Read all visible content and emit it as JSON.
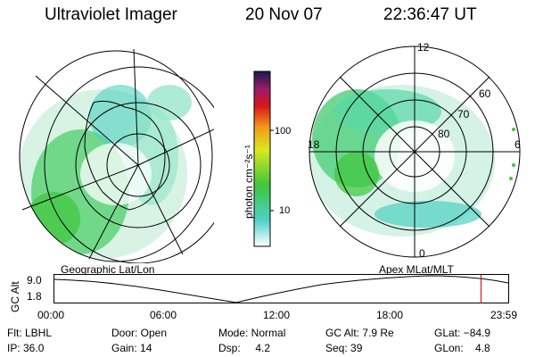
{
  "header": {
    "title": "Ultraviolet Imager",
    "date": "20 Nov 07",
    "time": "22:36:47 UT"
  },
  "colors": {
    "background": "#ffffff",
    "aurora_green": "#3fc63a",
    "aurora_cyan": "#39c9b8",
    "marker_red": "#cc0000"
  },
  "colorbar": {
    "label": "photon cm⁻²s⁻¹",
    "ticks": [
      "100",
      "10"
    ]
  },
  "geo_panel": {
    "caption": "Geographic Lat/Lon"
  },
  "polar_panel": {
    "caption": "Apex MLat/MLT",
    "mlt_labels": {
      "top": "12",
      "right": "6",
      "bottom": "0",
      "left": "18"
    },
    "lat_labels": [
      "60",
      "70",
      "80"
    ]
  },
  "altitude_plot": {
    "ylabel": "GC Alt",
    "ytick_top": "9.0",
    "ytick_bottom": "1.8",
    "xticks": [
      "00:00",
      "06:00",
      "12:00",
      "18:00",
      "23:59"
    ],
    "current_time_fraction": 0.94
  },
  "info": {
    "row1": {
      "filter": "Flt: LBHL",
      "door": "Door: Open",
      "mode": "Mode: Normal",
      "gc_alt": "GC Alt: 7.9 Re",
      "glat": "GLat: −84.9"
    },
    "row2": {
      "ip": "IP: 36.0",
      "gain": "Gain: 14",
      "dsp": "Dsp:     4.2",
      "seq": "Seq: 39",
      "glon": "GLon:    4.8"
    }
  }
}
